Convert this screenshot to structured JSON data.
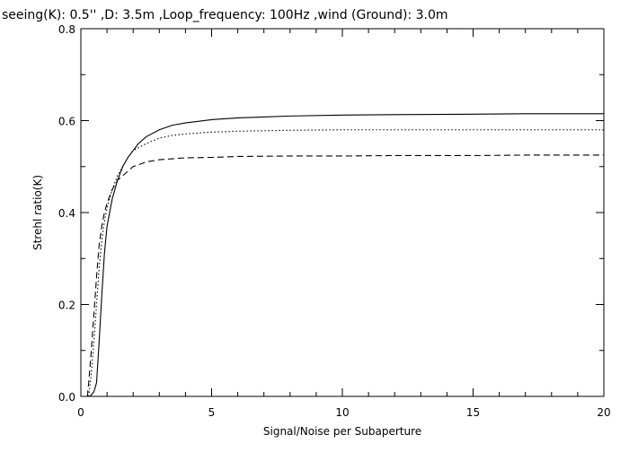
{
  "chart_data": {
    "type": "line",
    "title": "seeing(K): 0.5''  ,D: 3.5m  ,Loop_frequency: 100Hz ,wind (Ground): 3.0m",
    "xlabel": "Signal/Noise per Subaperture",
    "ylabel": "Strehl ratio(K)",
    "xlim": [
      0,
      20
    ],
    "ylim": [
      0,
      0.8
    ],
    "xticks": [
      0,
      5,
      10,
      15,
      20
    ],
    "xtick_labels": [
      "0",
      "5",
      "10",
      "15",
      "20"
    ],
    "yticks": [
      0.0,
      0.2,
      0.4,
      0.6,
      0.8
    ],
    "ytick_labels": [
      "0.0",
      "0.2",
      "0.4",
      "0.6",
      "0.8"
    ],
    "grid": false,
    "legend": "none",
    "series": [
      {
        "style": "solid",
        "x": [
          0.35,
          0.5,
          0.6,
          0.7,
          0.8,
          0.9,
          1.0,
          1.2,
          1.4,
          1.6,
          1.8,
          2.0,
          2.2,
          2.5,
          3.0,
          3.5,
          4.0,
          5.0,
          6.0,
          7.0,
          8.0,
          10.0,
          12.0,
          15.0,
          17.0,
          20.0
        ],
        "y": [
          0.0,
          0.01,
          0.03,
          0.12,
          0.22,
          0.31,
          0.37,
          0.43,
          0.47,
          0.5,
          0.52,
          0.535,
          0.55,
          0.565,
          0.58,
          0.59,
          0.595,
          0.602,
          0.606,
          0.608,
          0.61,
          0.612,
          0.613,
          0.614,
          0.615,
          0.615
        ]
      },
      {
        "style": "dotted",
        "x": [
          0.3,
          0.4,
          0.5,
          0.6,
          0.7,
          0.8,
          0.9,
          1.0,
          1.2,
          1.4,
          1.6,
          1.8,
          2.0,
          2.5,
          3.0,
          3.5,
          4.0,
          5.0,
          6.0,
          7.0,
          8.0,
          10.0,
          12.0,
          15.0,
          17.0,
          20.0
        ],
        "y": [
          0.0,
          0.05,
          0.12,
          0.2,
          0.28,
          0.34,
          0.38,
          0.41,
          0.45,
          0.48,
          0.5,
          0.52,
          0.535,
          0.55,
          0.562,
          0.568,
          0.571,
          0.575,
          0.577,
          0.578,
          0.579,
          0.58,
          0.58,
          0.58,
          0.58,
          0.58
        ]
      },
      {
        "style": "dashed",
        "x": [
          0.25,
          0.3,
          0.4,
          0.5,
          0.6,
          0.7,
          0.8,
          0.9,
          1.0,
          1.2,
          1.4,
          1.6,
          1.8,
          2.0,
          2.5,
          3.0,
          3.5,
          4.0,
          5.0,
          6.0,
          8.0,
          10.0,
          12.0,
          15.0,
          17.0,
          20.0
        ],
        "y": [
          0.0,
          0.03,
          0.1,
          0.18,
          0.26,
          0.33,
          0.37,
          0.4,
          0.42,
          0.45,
          0.47,
          0.48,
          0.49,
          0.5,
          0.51,
          0.515,
          0.517,
          0.519,
          0.52,
          0.522,
          0.523,
          0.523,
          0.524,
          0.524,
          0.525,
          0.525
        ]
      }
    ]
  }
}
